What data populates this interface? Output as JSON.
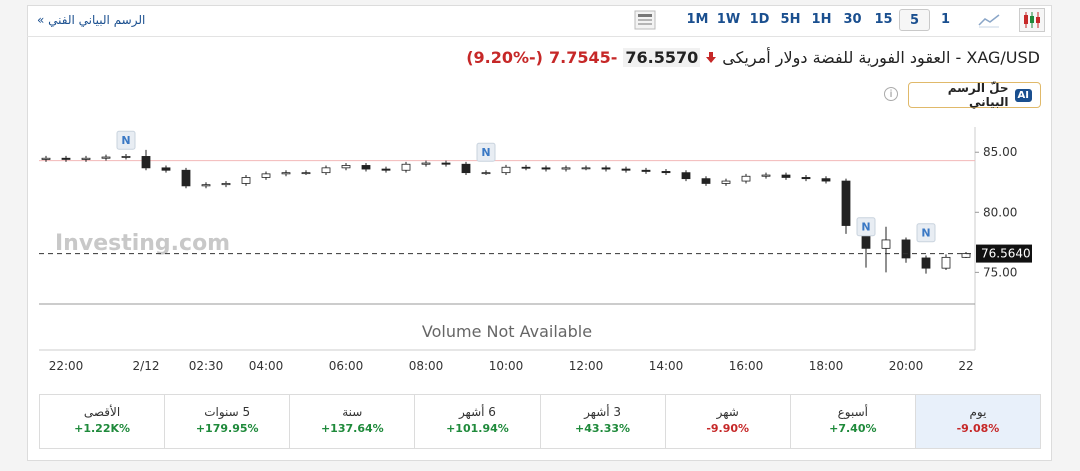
{
  "toolbar": {
    "technical_link": "الرسم البياني الفني »",
    "timeframes": [
      "1M",
      "1W",
      "1D",
      "5H",
      "1H",
      "30",
      "15",
      "5",
      "1"
    ],
    "selected": "5"
  },
  "header": {
    "title": "XAG/USD - العقود الفورية للفضة دولار أمريكى",
    "price": "76.5570",
    "change": "-7.7545",
    "change_percent": "(-9.20%)",
    "ai_badge": "AI",
    "ai_button": "حلّ الرسم البياني",
    "info": "i"
  },
  "chart_data": {
    "type": "candlestick",
    "categories": [
      null,
      "22:00",
      null,
      null,
      null,
      "2/12",
      null,
      null,
      "02:30",
      null,
      null,
      "04:00",
      null,
      null,
      null,
      "06:00",
      null,
      null,
      null,
      "08:00",
      null,
      null,
      null,
      "10:00",
      null,
      null,
      null,
      "12:00",
      null,
      null,
      null,
      "14:00",
      null,
      null,
      null,
      "16:00",
      null,
      null,
      null,
      "18:00",
      null,
      null,
      null,
      "20:00",
      null,
      null,
      "22"
    ],
    "open": [
      84.4,
      84.5,
      84.4,
      84.5,
      84.6,
      84.65,
      83.7,
      83.5,
      82.2,
      82.3,
      82.4,
      82.9,
      83.2,
      83.3,
      83.3,
      83.7,
      83.9,
      83.6,
      83.5,
      84.0,
      84.1,
      84.0,
      83.3,
      83.3,
      83.75,
      83.7,
      83.6,
      83.7,
      83.7,
      83.6,
      83.5,
      83.4,
      83.3,
      82.8,
      82.4,
      82.6,
      83.0,
      83.1,
      82.9,
      82.8,
      82.6,
      78.9,
      77.0,
      77.7,
      76.2,
      75.35,
      76.25
    ],
    "high": [
      84.7,
      84.7,
      84.7,
      84.8,
      84.85,
      85.2,
      83.9,
      83.7,
      82.5,
      82.6,
      83.1,
      83.4,
      83.5,
      83.5,
      83.9,
      84.1,
      84.1,
      83.8,
      84.2,
      84.3,
      84.3,
      84.2,
      83.5,
      83.95,
      83.95,
      83.9,
      83.9,
      83.9,
      83.9,
      83.8,
      83.7,
      83.6,
      83.5,
      83.0,
      82.8,
      83.2,
      83.3,
      83.3,
      83.1,
      83.0,
      82.8,
      79.4,
      78.8,
      77.9,
      76.4,
      76.5,
      76.7
    ],
    "low": [
      84.2,
      84.2,
      84.2,
      84.3,
      84.4,
      83.5,
      83.3,
      82.0,
      82.0,
      82.1,
      82.2,
      82.7,
      83.0,
      83.1,
      83.1,
      83.5,
      83.4,
      83.3,
      83.3,
      83.8,
      83.8,
      83.1,
      83.1,
      83.1,
      83.5,
      83.4,
      83.4,
      83.5,
      83.4,
      83.3,
      83.2,
      83.1,
      82.6,
      82.2,
      82.2,
      82.4,
      82.8,
      82.7,
      82.6,
      82.4,
      78.2,
      75.4,
      75.0,
      75.8,
      74.9,
      75.2,
      76.2
    ],
    "close": [
      84.5,
      84.4,
      84.5,
      84.6,
      84.65,
      83.7,
      83.5,
      82.2,
      82.3,
      82.4,
      82.9,
      83.2,
      83.3,
      83.3,
      83.7,
      83.9,
      83.6,
      83.5,
      84.0,
      84.1,
      84.0,
      83.3,
      83.3,
      83.75,
      83.7,
      83.6,
      83.7,
      83.7,
      83.6,
      83.5,
      83.4,
      83.3,
      82.8,
      82.4,
      82.6,
      83.0,
      83.1,
      82.9,
      82.8,
      82.6,
      78.9,
      77.0,
      77.7,
      76.2,
      75.35,
      76.25,
      76.56
    ],
    "up_color": "#ffffff",
    "down_color": "#222222",
    "wick_color": "#222222",
    "ylim": [
      72.7,
      87.1
    ],
    "yticks": [
      {
        "value": 75,
        "label": "75.00"
      },
      {
        "value": 80,
        "label": "80.00"
      },
      {
        "value": 85,
        "label": "85.00"
      }
    ],
    "last_price": {
      "value": 76.564,
      "label": "76.5640"
    },
    "reference_line": 84.3,
    "news_markers": [
      {
        "index": 4,
        "value": 86.0,
        "label": "N"
      },
      {
        "index": 22,
        "value": 85.0,
        "label": "N"
      },
      {
        "index": 41,
        "value": 78.8,
        "label": "N"
      },
      {
        "index": 44,
        "value": 78.3,
        "label": "N"
      }
    ],
    "watermark": "Investing.com",
    "volume_note": "Volume Not Available"
  },
  "performance": [
    {
      "period": "يوم",
      "change": "-9.08%"
    },
    {
      "period": "أسبوع",
      "change": "+7.40%"
    },
    {
      "period": "شهر",
      "change": "-9.90%"
    },
    {
      "period": "3 أشهر",
      "change": "+43.33%"
    },
    {
      "period": "6 أشهر",
      "change": "+101.94%"
    },
    {
      "period": "سنة",
      "change": "+137.64%"
    },
    {
      "period": "5 سنوات",
      "change": "+179.95%"
    },
    {
      "period": "الأقصى",
      "change": "+1.22K%"
    }
  ]
}
